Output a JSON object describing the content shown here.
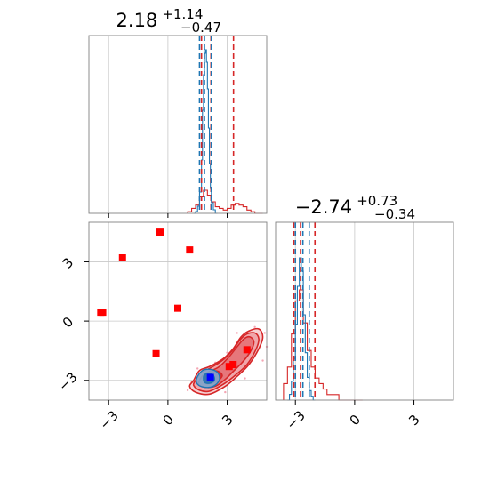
{
  "colors": {
    "blue": "#1f77b4",
    "red": "#d62728",
    "marker_red": "#ff0000",
    "marker_blue": "#0000ff",
    "grid": "#c8c8c8",
    "frame": "#808080"
  },
  "chart_data": {
    "type": "corner",
    "grid": true,
    "params": [
      {
        "title": {
          "median": "2.18",
          "plus": "+1.14",
          "minus": "−0.47"
        },
        "range": [
          -4,
          5
        ],
        "ticks": [
          -3,
          0,
          3
        ],
        "tick_labels": [
          "−3",
          "0",
          "3"
        ],
        "quantiles_blue": [
          1.6,
          1.85,
          2.2
        ],
        "quantiles_red": [
          1.7,
          2.18,
          3.32
        ],
        "hist_blue": {
          "edges": [
            1.3,
            1.4,
            1.5,
            1.6,
            1.7,
            1.75,
            1.8,
            1.85,
            1.9,
            1.95,
            2.0,
            2.05,
            2.1,
            2.15,
            2.2,
            2.3,
            2.4,
            2.5
          ],
          "counts": [
            0,
            1,
            4,
            12,
            30,
            58,
            78,
            90,
            92,
            85,
            70,
            48,
            28,
            14,
            6,
            2,
            0
          ]
        },
        "hist_red": {
          "edges": [
            1.0,
            1.2,
            1.4,
            1.6,
            1.8,
            2.0,
            2.2,
            2.4,
            2.6,
            2.8,
            3.0,
            3.2,
            3.4,
            3.6,
            3.8,
            4.0,
            4.2,
            4.4,
            4.6,
            4.8
          ],
          "counts": [
            1,
            3,
            5,
            10,
            14,
            11,
            7,
            4,
            3,
            2,
            3,
            5,
            6,
            5,
            4,
            2,
            1,
            0,
            0
          ]
        }
      },
      {
        "title": {
          "median": "−2.74",
          "plus": "+0.73",
          "minus": "−0.34"
        },
        "range": [
          -4,
          5
        ],
        "ticks": [
          -3,
          0,
          3
        ],
        "tick_labels": [
          "−3",
          "0",
          "3"
        ],
        "quantiles_blue": [
          -3.0,
          -2.62,
          -2.3
        ],
        "quantiles_red": [
          -3.08,
          -2.74,
          -2.01
        ],
        "hist_blue": {
          "edges": [
            -3.4,
            -3.3,
            -3.2,
            -3.1,
            -3.0,
            -2.9,
            -2.8,
            -2.7,
            -2.6,
            -2.5,
            -2.4,
            -2.3,
            -2.2,
            -2.1,
            -2.0
          ],
          "counts": [
            0,
            3,
            10,
            22,
            40,
            60,
            75,
            68,
            45,
            25,
            12,
            5,
            2,
            0
          ]
        },
        "hist_red": {
          "edges": [
            -3.6,
            -3.4,
            -3.2,
            -3.0,
            -2.8,
            -2.6,
            -2.4,
            -2.2,
            -2.0,
            -1.8,
            -1.6,
            -1.4,
            -1.2,
            -1.0,
            -0.8,
            -0.6,
            -0.4,
            -0.2,
            0.0,
            0.2,
            0.4
          ],
          "counts": [
            3,
            6,
            12,
            18,
            20,
            14,
            9,
            6,
            4,
            3,
            2,
            1,
            1,
            1,
            0,
            0,
            0,
            0,
            0,
            0
          ]
        }
      }
    ],
    "scatter_points_red": [
      {
        "x": -3.4,
        "y": 0.45
      },
      {
        "x": -3.3,
        "y": 0.45
      },
      {
        "x": -2.3,
        "y": 3.2
      },
      {
        "x": -0.4,
        "y": 4.5
      },
      {
        "x": 1.1,
        "y": 3.6
      },
      {
        "x": 0.5,
        "y": 0.65
      },
      {
        "x": -0.6,
        "y": -1.65
      },
      {
        "x": 4.0,
        "y": -1.45
      },
      {
        "x": 3.3,
        "y": -2.2
      },
      {
        "x": 3.1,
        "y": -2.3
      }
    ],
    "marker_blue": {
      "x": 2.15,
      "y": -2.85
    },
    "contours_red": [
      {
        "level": 0.99,
        "pts": [
          [
            1.3,
            -3.0
          ],
          [
            1.1,
            -3.3
          ],
          [
            1.4,
            -3.6
          ],
          [
            2.1,
            -3.7
          ],
          [
            2.9,
            -3.3
          ],
          [
            3.5,
            -2.8
          ],
          [
            4.1,
            -2.2
          ],
          [
            4.6,
            -1.4
          ],
          [
            4.8,
            -0.8
          ],
          [
            4.6,
            -0.4
          ],
          [
            4.1,
            -0.5
          ],
          [
            3.7,
            -0.8
          ],
          [
            3.3,
            -1.4
          ],
          [
            2.8,
            -1.9
          ],
          [
            2.1,
            -2.3
          ],
          [
            1.6,
            -2.5
          ]
        ]
      },
      {
        "level": 0.95,
        "pts": [
          [
            1.4,
            -3.0
          ],
          [
            1.3,
            -3.25
          ],
          [
            1.6,
            -3.5
          ],
          [
            2.1,
            -3.55
          ],
          [
            2.8,
            -3.2
          ],
          [
            3.4,
            -2.75
          ],
          [
            4.0,
            -2.2
          ],
          [
            4.45,
            -1.45
          ],
          [
            4.6,
            -0.9
          ],
          [
            4.4,
            -0.6
          ],
          [
            4.0,
            -0.65
          ],
          [
            3.65,
            -0.95
          ],
          [
            3.25,
            -1.5
          ],
          [
            2.75,
            -2.0
          ],
          [
            2.1,
            -2.4
          ],
          [
            1.7,
            -2.6
          ]
        ]
      },
      {
        "level": 0.86,
        "pts": [
          [
            1.6,
            -3.0
          ],
          [
            1.55,
            -3.2
          ],
          [
            1.9,
            -3.35
          ],
          [
            2.4,
            -3.3
          ],
          [
            2.9,
            -2.95
          ],
          [
            3.3,
            -2.55
          ],
          [
            3.8,
            -2.05
          ],
          [
            4.2,
            -1.5
          ],
          [
            4.35,
            -1.05
          ],
          [
            4.15,
            -0.8
          ],
          [
            3.85,
            -0.9
          ],
          [
            3.5,
            -1.3
          ],
          [
            3.1,
            -1.8
          ],
          [
            2.6,
            -2.3
          ],
          [
            2.1,
            -2.55
          ],
          [
            1.8,
            -2.7
          ]
        ]
      },
      {
        "level": 0.39,
        "pts": [
          [
            1.85,
            -2.95
          ],
          [
            1.9,
            -3.15
          ],
          [
            2.2,
            -3.15
          ],
          [
            2.55,
            -3.0
          ],
          [
            2.75,
            -2.75
          ],
          [
            2.55,
            -2.55
          ],
          [
            2.2,
            -2.55
          ],
          [
            1.95,
            -2.7
          ]
        ]
      }
    ],
    "contours_blue": [
      {
        "level": 0.95,
        "pts": [
          [
            1.45,
            -2.9
          ],
          [
            1.5,
            -3.2
          ],
          [
            1.85,
            -3.35
          ],
          [
            2.3,
            -3.3
          ],
          [
            2.6,
            -3.0
          ],
          [
            2.55,
            -2.65
          ],
          [
            2.2,
            -2.45
          ],
          [
            1.75,
            -2.5
          ]
        ]
      },
      {
        "level": 0.39,
        "pts": [
          [
            1.8,
            -2.9
          ],
          [
            1.85,
            -3.1
          ],
          [
            2.1,
            -3.15
          ],
          [
            2.35,
            -3.0
          ],
          [
            2.3,
            -2.75
          ],
          [
            2.05,
            -2.65
          ],
          [
            1.85,
            -2.72
          ]
        ]
      }
    ],
    "scatter_cloud_pink": [
      [
        1.2,
        -3.1
      ],
      [
        1.4,
        -3.4
      ],
      [
        2.5,
        -3.5
      ],
      [
        3.2,
        -3.0
      ],
      [
        3.8,
        -2.4
      ],
      [
        4.3,
        -1.8
      ],
      [
        4.7,
        -1.0
      ],
      [
        4.9,
        -0.6
      ],
      [
        4.4,
        -0.3
      ],
      [
        3.5,
        -0.6
      ],
      [
        3.0,
        -1.6
      ],
      [
        2.4,
        -2.1
      ],
      [
        1.5,
        -2.4
      ],
      [
        5.0,
        -1.3
      ],
      [
        4.8,
        -2.0
      ],
      [
        1.0,
        -3.5
      ],
      [
        2.9,
        -3.6
      ],
      [
        3.9,
        -2.9
      ]
    ]
  }
}
